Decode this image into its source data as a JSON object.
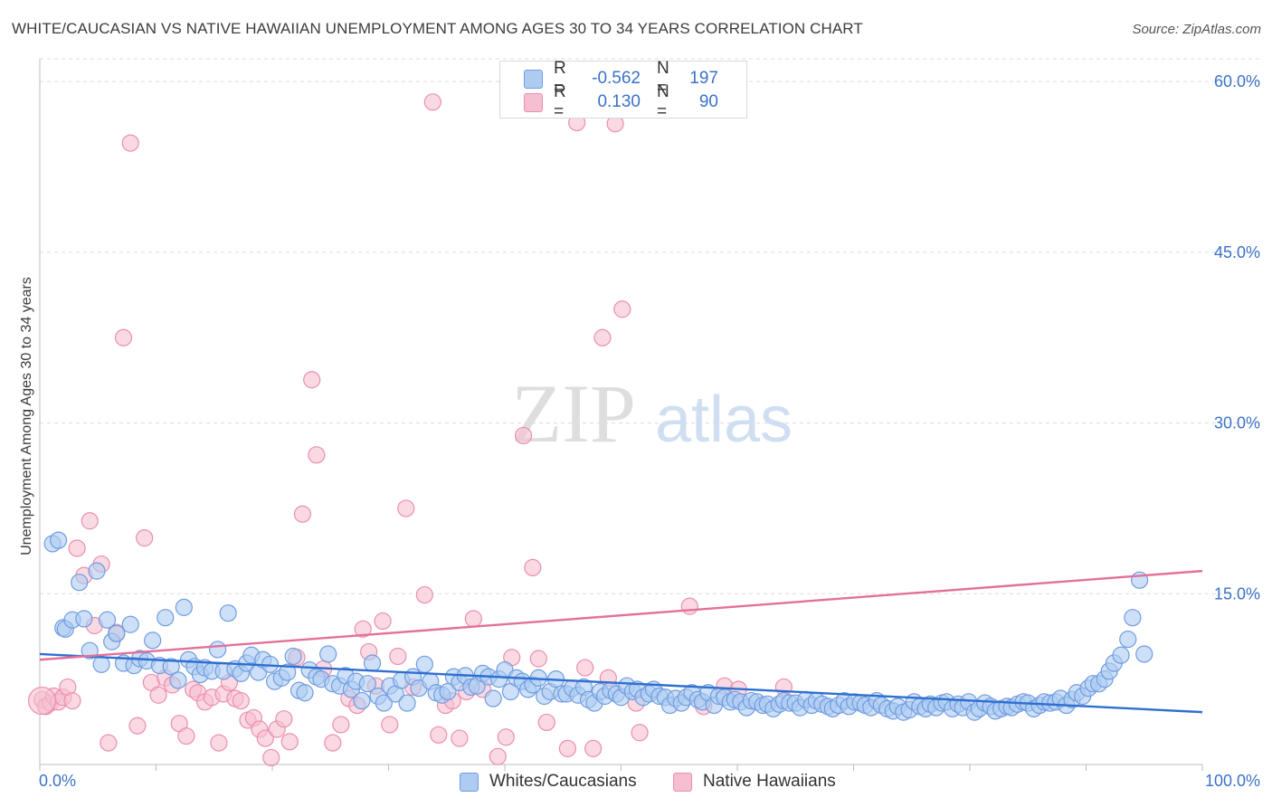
{
  "title": "WHITE/CAUCASIAN VS NATIVE HAWAIIAN UNEMPLOYMENT AMONG AGES 30 TO 34 YEARS CORRELATION CHART",
  "source": "Source: ZipAtlas.com",
  "watermark": {
    "zip": "ZIP",
    "atlas": "atlas"
  },
  "legend": {
    "white": {
      "r_label": "R =",
      "r_value": "-0.562",
      "n_label": "N =",
      "n_value": "197"
    },
    "hawaiian": {
      "r_label": "R =",
      "r_value": "0.130",
      "n_label": "N =",
      "n_value": "90"
    }
  },
  "bottom_legend": {
    "white": "Whites/Caucasians",
    "hawaiian": "Native Hawaiians"
  },
  "colors": {
    "white_fill": "#aecbf2",
    "white_stroke": "#6f9ce0",
    "white_line": "#2f6fd0",
    "hawaiian_fill": "#f6bfd1",
    "hawaiian_stroke": "#ea8fae",
    "hawaiian_line": "#e4709a",
    "grid": "#dcdcdc",
    "tick_label": "#3a72c8"
  },
  "chart_data": {
    "type": "scatter",
    "title": "WHITE/CAUCASIAN VS NATIVE HAWAIIAN UNEMPLOYMENT AMONG AGES 30 TO 34 YEARS CORRELATION CHART",
    "xlabel": "",
    "ylabel": "Unemployment Among Ages 30 to 34 years",
    "xlim": [
      0,
      100
    ],
    "ylim": [
      0,
      62
    ],
    "x_tick_labels": [
      "0.0%",
      "100.0%"
    ],
    "y_ticks": [
      15,
      30,
      45,
      60
    ],
    "y_tick_labels": [
      "15.0%",
      "30.0%",
      "45.0%",
      "60.0%"
    ],
    "grid": true,
    "legend_position": "top-center",
    "series": [
      {
        "name": "Whites/Caucasians",
        "r": -0.562,
        "n": 197,
        "trend": {
          "x": [
            0,
            100
          ],
          "y": [
            9.7,
            4.6
          ]
        },
        "points": [
          [
            1.1,
            19.4
          ],
          [
            1.6,
            19.7
          ],
          [
            2.0,
            12.0
          ],
          [
            2.2,
            11.9
          ],
          [
            2.8,
            12.7
          ],
          [
            3.4,
            16.0
          ],
          [
            3.8,
            12.8
          ],
          [
            4.3,
            10.0
          ],
          [
            4.9,
            17.0
          ],
          [
            5.3,
            8.8
          ],
          [
            5.8,
            12.7
          ],
          [
            6.2,
            10.8
          ],
          [
            6.6,
            11.5
          ],
          [
            7.2,
            8.9
          ],
          [
            7.8,
            12.3
          ],
          [
            8.1,
            8.7
          ],
          [
            8.6,
            9.3
          ],
          [
            9.2,
            9.1
          ],
          [
            9.7,
            10.9
          ],
          [
            10.3,
            8.7
          ],
          [
            10.8,
            12.9
          ],
          [
            11.3,
            8.6
          ],
          [
            11.9,
            7.4
          ],
          [
            12.4,
            13.8
          ],
          [
            12.8,
            9.2
          ],
          [
            13.3,
            8.6
          ],
          [
            13.8,
            7.9
          ],
          [
            14.2,
            8.5
          ],
          [
            14.8,
            8.2
          ],
          [
            15.3,
            10.1
          ],
          [
            15.8,
            8.2
          ],
          [
            16.2,
            13.3
          ],
          [
            16.8,
            8.4
          ],
          [
            17.3,
            8.0
          ],
          [
            17.8,
            8.9
          ],
          [
            18.2,
            9.6
          ],
          [
            18.8,
            8.1
          ],
          [
            19.2,
            9.2
          ],
          [
            19.8,
            8.8
          ],
          [
            20.2,
            7.3
          ],
          [
            20.8,
            7.6
          ],
          [
            21.3,
            8.1
          ],
          [
            21.8,
            9.5
          ],
          [
            22.3,
            6.5
          ],
          [
            22.8,
            6.3
          ],
          [
            23.2,
            8.3
          ],
          [
            23.8,
            7.7
          ],
          [
            24.2,
            7.5
          ],
          [
            24.8,
            9.7
          ],
          [
            25.2,
            7.1
          ],
          [
            25.8,
            6.9
          ],
          [
            26.3,
            7.8
          ],
          [
            26.8,
            6.6
          ],
          [
            27.2,
            7.3
          ],
          [
            27.7,
            5.6
          ],
          [
            28.2,
            7.1
          ],
          [
            28.6,
            8.9
          ],
          [
            29.1,
            6.0
          ],
          [
            29.6,
            5.4
          ],
          [
            30.1,
            6.9
          ],
          [
            30.6,
            6.2
          ],
          [
            31.1,
            7.4
          ],
          [
            31.6,
            5.4
          ],
          [
            32.1,
            7.7
          ],
          [
            32.6,
            6.7
          ],
          [
            33.1,
            8.8
          ],
          [
            33.6,
            7.3
          ],
          [
            34.1,
            6.3
          ],
          [
            34.6,
            6.1
          ],
          [
            35.1,
            6.4
          ],
          [
            35.6,
            7.7
          ],
          [
            36.1,
            7.2
          ],
          [
            36.6,
            7.8
          ],
          [
            37.1,
            6.8
          ],
          [
            37.6,
            6.9
          ],
          [
            38.1,
            8.0
          ],
          [
            38.6,
            7.7
          ],
          [
            39.0,
            5.8
          ],
          [
            39.5,
            7.5
          ],
          [
            40.0,
            8.3
          ],
          [
            40.5,
            6.4
          ],
          [
            41.0,
            7.6
          ],
          [
            41.5,
            7.3
          ],
          [
            42.0,
            6.6
          ],
          [
            42.4,
            7.0
          ],
          [
            42.9,
            7.6
          ],
          [
            43.4,
            6.0
          ],
          [
            43.9,
            6.4
          ],
          [
            44.4,
            7.5
          ],
          [
            44.9,
            6.2
          ],
          [
            45.3,
            6.2
          ],
          [
            45.8,
            6.7
          ],
          [
            46.3,
            6.1
          ],
          [
            46.8,
            6.8
          ],
          [
            47.2,
            5.7
          ],
          [
            47.7,
            5.4
          ],
          [
            48.2,
            6.4
          ],
          [
            48.6,
            6.0
          ],
          [
            49.1,
            6.5
          ],
          [
            49.6,
            6.2
          ],
          [
            50.0,
            5.9
          ],
          [
            50.5,
            6.9
          ],
          [
            51.0,
            6.4
          ],
          [
            51.4,
            6.6
          ],
          [
            51.9,
            5.9
          ],
          [
            52.4,
            6.2
          ],
          [
            52.8,
            6.6
          ],
          [
            53.3,
            6.0
          ],
          [
            53.8,
            5.9
          ],
          [
            54.2,
            5.2
          ],
          [
            54.7,
            5.8
          ],
          [
            55.2,
            5.4
          ],
          [
            55.6,
            5.9
          ],
          [
            56.1,
            6.3
          ],
          [
            56.6,
            5.7
          ],
          [
            57.0,
            5.5
          ],
          [
            57.5,
            6.3
          ],
          [
            58.0,
            5.2
          ],
          [
            58.4,
            6.0
          ],
          [
            58.9,
            5.9
          ],
          [
            59.4,
            5.5
          ],
          [
            59.8,
            5.7
          ],
          [
            60.3,
            5.5
          ],
          [
            60.8,
            5.0
          ],
          [
            61.2,
            5.6
          ],
          [
            61.7,
            5.5
          ],
          [
            62.2,
            5.2
          ],
          [
            62.6,
            5.3
          ],
          [
            63.1,
            4.9
          ],
          [
            63.6,
            5.3
          ],
          [
            64.0,
            5.6
          ],
          [
            64.5,
            5.4
          ],
          [
            65.0,
            5.4
          ],
          [
            65.4,
            5.0
          ],
          [
            65.9,
            5.7
          ],
          [
            66.4,
            5.2
          ],
          [
            66.8,
            5.6
          ],
          [
            67.3,
            5.3
          ],
          [
            67.8,
            5.1
          ],
          [
            68.2,
            4.9
          ],
          [
            68.7,
            5.2
          ],
          [
            69.2,
            5.6
          ],
          [
            69.6,
            5.1
          ],
          [
            70.1,
            5.5
          ],
          [
            70.6,
            5.4
          ],
          [
            71.0,
            5.2
          ],
          [
            71.5,
            5.0
          ],
          [
            72.0,
            5.6
          ],
          [
            72.4,
            5.2
          ],
          [
            72.9,
            4.9
          ],
          [
            73.4,
            4.7
          ],
          [
            73.8,
            5.1
          ],
          [
            74.3,
            4.6
          ],
          [
            74.8,
            4.8
          ],
          [
            75.2,
            5.5
          ],
          [
            75.7,
            5.1
          ],
          [
            76.2,
            4.9
          ],
          [
            76.6,
            5.3
          ],
          [
            77.1,
            5.0
          ],
          [
            77.6,
            5.4
          ],
          [
            78.0,
            5.5
          ],
          [
            78.5,
            4.9
          ],
          [
            79.0,
            5.3
          ],
          [
            79.4,
            5.0
          ],
          [
            79.9,
            5.5
          ],
          [
            80.4,
            4.6
          ],
          [
            80.8,
            4.9
          ],
          [
            81.3,
            5.4
          ],
          [
            81.8,
            5.1
          ],
          [
            82.2,
            4.7
          ],
          [
            82.7,
            4.9
          ],
          [
            83.2,
            5.1
          ],
          [
            83.6,
            5.0
          ],
          [
            84.1,
            5.3
          ],
          [
            84.6,
            5.5
          ],
          [
            85.0,
            5.4
          ],
          [
            85.5,
            4.9
          ],
          [
            86.0,
            5.2
          ],
          [
            86.4,
            5.5
          ],
          [
            86.9,
            5.4
          ],
          [
            87.4,
            5.5
          ],
          [
            87.8,
            5.8
          ],
          [
            88.3,
            5.2
          ],
          [
            88.8,
            5.7
          ],
          [
            89.2,
            6.3
          ],
          [
            89.7,
            6.0
          ],
          [
            90.2,
            6.7
          ],
          [
            90.6,
            7.1
          ],
          [
            91.1,
            7.1
          ],
          [
            91.6,
            7.5
          ],
          [
            92.0,
            8.2
          ],
          [
            92.4,
            8.9
          ],
          [
            93.0,
            9.6
          ],
          [
            93.6,
            11.0
          ],
          [
            94.0,
            12.9
          ],
          [
            94.6,
            16.2
          ],
          [
            95.0,
            9.7
          ]
        ]
      },
      {
        "name": "Native Hawaiians",
        "r": 0.13,
        "n": 90,
        "trend": {
          "x": [
            0,
            100
          ],
          "y": [
            9.2,
            17.0
          ]
        },
        "points": [
          [
            0.2,
            5.7
          ],
          [
            0.5,
            5.1
          ],
          [
            0.9,
            5.4
          ],
          [
            1.2,
            6.0
          ],
          [
            1.6,
            5.5
          ],
          [
            2.0,
            5.9
          ],
          [
            2.4,
            6.8
          ],
          [
            2.8,
            5.6
          ],
          [
            3.2,
            19.0
          ],
          [
            3.8,
            16.6
          ],
          [
            4.3,
            21.4
          ],
          [
            4.7,
            12.2
          ],
          [
            5.3,
            17.6
          ],
          [
            5.9,
            1.9
          ],
          [
            6.6,
            11.6
          ],
          [
            7.2,
            37.5
          ],
          [
            7.8,
            54.6
          ],
          [
            8.4,
            3.4
          ],
          [
            9.0,
            19.9
          ],
          [
            9.6,
            7.2
          ],
          [
            10.2,
            6.1
          ],
          [
            10.8,
            7.6
          ],
          [
            11.4,
            7.0
          ],
          [
            12.0,
            3.6
          ],
          [
            12.6,
            2.5
          ],
          [
            13.2,
            6.6
          ],
          [
            13.6,
            6.3
          ],
          [
            14.2,
            5.5
          ],
          [
            14.8,
            5.9
          ],
          [
            15.4,
            1.9
          ],
          [
            15.8,
            6.2
          ],
          [
            16.3,
            7.2
          ],
          [
            16.8,
            5.8
          ],
          [
            17.3,
            5.6
          ],
          [
            17.9,
            3.9
          ],
          [
            18.4,
            4.1
          ],
          [
            18.9,
            3.1
          ],
          [
            19.4,
            2.3
          ],
          [
            19.9,
            0.6
          ],
          [
            20.4,
            3.1
          ],
          [
            21.0,
            4.0
          ],
          [
            21.5,
            2.0
          ],
          [
            22.1,
            9.4
          ],
          [
            22.6,
            22.0
          ],
          [
            23.4,
            33.8
          ],
          [
            23.8,
            27.2
          ],
          [
            24.4,
            8.4
          ],
          [
            25.2,
            1.9
          ],
          [
            25.9,
            3.5
          ],
          [
            26.6,
            5.8
          ],
          [
            27.3,
            5.2
          ],
          [
            27.8,
            11.9
          ],
          [
            28.3,
            9.9
          ],
          [
            28.9,
            6.9
          ],
          [
            29.5,
            12.6
          ],
          [
            30.1,
            3.5
          ],
          [
            30.8,
            9.5
          ],
          [
            31.5,
            22.5
          ],
          [
            32.1,
            6.8
          ],
          [
            33.1,
            14.9
          ],
          [
            33.8,
            58.2
          ],
          [
            34.3,
            2.6
          ],
          [
            34.9,
            5.2
          ],
          [
            35.5,
            5.6
          ],
          [
            36.1,
            2.3
          ],
          [
            36.7,
            6.4
          ],
          [
            37.3,
            12.8
          ],
          [
            38.1,
            6.6
          ],
          [
            39.4,
            0.7
          ],
          [
            40.1,
            2.4
          ],
          [
            40.6,
            9.4
          ],
          [
            41.6,
            28.9
          ],
          [
            42.4,
            17.3
          ],
          [
            42.9,
            9.3
          ],
          [
            43.6,
            3.7
          ],
          [
            45.4,
            1.4
          ],
          [
            46.2,
            56.4
          ],
          [
            46.9,
            8.5
          ],
          [
            47.6,
            1.4
          ],
          [
            48.4,
            37.5
          ],
          [
            48.9,
            7.6
          ],
          [
            49.5,
            56.3
          ],
          [
            50.1,
            40.0
          ],
          [
            51.6,
            2.8
          ],
          [
            51.3,
            5.4
          ],
          [
            55.9,
            13.9
          ],
          [
            57.1,
            5.1
          ],
          [
            58.9,
            6.9
          ],
          [
            60.1,
            6.6
          ],
          [
            64.0,
            6.8
          ]
        ]
      }
    ]
  },
  "axes": {
    "y_axis_label": "Unemployment Among Ages 30 to 34 years",
    "x_left_label": "0.0%",
    "x_right_label": "100.0%"
  }
}
